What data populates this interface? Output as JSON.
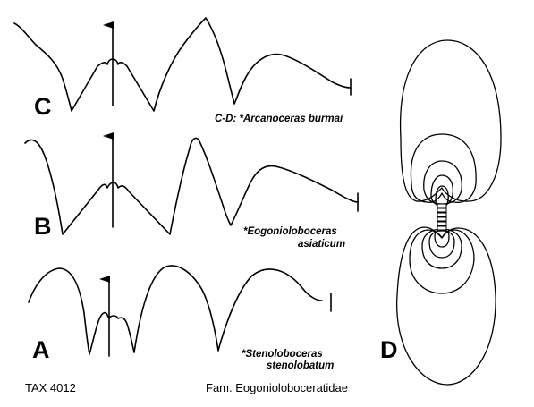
{
  "panels": {
    "a": {
      "letter": "A",
      "caption_line1": "*Stenoloboceras",
      "caption_line2": "stenolobatum"
    },
    "b": {
      "letter": "B",
      "caption_line1": "*Eogonioloboceras",
      "caption_line2": "asiaticum"
    },
    "c": {
      "letter": "C",
      "caption_line1": "C-D: *Arcanoceras burmai"
    },
    "d": {
      "letter": "D"
    }
  },
  "footer": {
    "taxon_number": "TAX 4012",
    "family": "Fam. Eogonioloboceratidae"
  }
}
